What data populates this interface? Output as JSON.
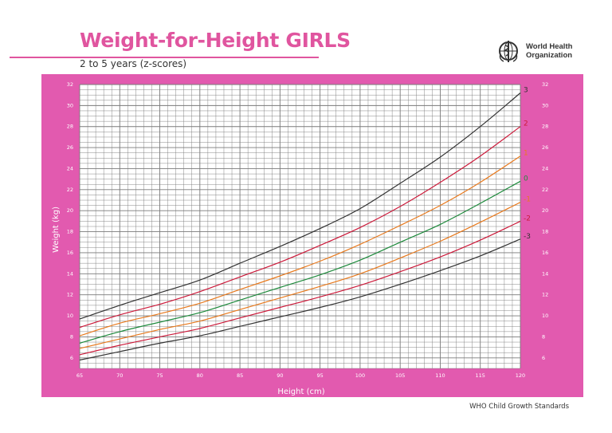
{
  "header": {
    "title": "Weight-for-Height GIRLS",
    "subtitle": "2 to 5 years (z-scores)",
    "org_line1": "World Health",
    "org_line2": "Organization"
  },
  "footer": {
    "text": "WHO Child Growth Standards"
  },
  "colors": {
    "frame": "#e25aaf",
    "grid": "#7a7a7a",
    "z3": "#333333",
    "z2": "#cc1a3a",
    "z1": "#e87a1e",
    "z0": "#1e8a3c"
  },
  "chart_data": {
    "type": "line",
    "title": "Weight-for-Height GIRLS",
    "subtitle": "2 to 5 years (z-scores)",
    "xlabel": "Height (cm)",
    "ylabel": "Weight (kg)",
    "xlim": [
      65,
      120
    ],
    "ylim": [
      5,
      32
    ],
    "x_ticks": [
      "65",
      "70",
      "75",
      "80",
      "85",
      "90",
      "95",
      "100",
      "105",
      "110",
      "115",
      "120"
    ],
    "y_ticks": [
      "6",
      "8",
      "10",
      "12",
      "14",
      "16",
      "18",
      "20",
      "22",
      "24",
      "26",
      "28",
      "30",
      "32"
    ],
    "grid": true,
    "x": [
      65,
      70,
      75,
      80,
      85,
      90,
      95,
      100,
      105,
      110,
      115,
      120
    ],
    "series": [
      {
        "name": "3",
        "color": "#333333",
        "values": [
          9.7,
          11.0,
          12.2,
          13.4,
          15.0,
          16.6,
          18.3,
          20.2,
          22.6,
          25.1,
          28.0,
          31.2
        ]
      },
      {
        "name": "2",
        "color": "#cc1a3a",
        "values": [
          8.9,
          10.1,
          11.1,
          12.3,
          13.7,
          15.1,
          16.7,
          18.4,
          20.4,
          22.7,
          25.2,
          28.0
        ]
      },
      {
        "name": "1",
        "color": "#e87a1e",
        "values": [
          8.1,
          9.3,
          10.2,
          11.2,
          12.5,
          13.8,
          15.2,
          16.8,
          18.6,
          20.5,
          22.7,
          25.2
        ]
      },
      {
        "name": "0",
        "color": "#1e8a3c",
        "values": [
          7.4,
          8.5,
          9.4,
          10.3,
          11.5,
          12.7,
          13.9,
          15.3,
          17.0,
          18.7,
          20.7,
          22.8
        ]
      },
      {
        "name": "-1",
        "color": "#e87a1e",
        "values": [
          6.9,
          7.8,
          8.7,
          9.5,
          10.6,
          11.7,
          12.8,
          14.0,
          15.5,
          17.1,
          18.9,
          20.8
        ]
      },
      {
        "name": "-2",
        "color": "#cc1a3a",
        "values": [
          6.3,
          7.2,
          8.0,
          8.8,
          9.8,
          10.8,
          11.8,
          12.9,
          14.2,
          15.6,
          17.2,
          19.0
        ]
      },
      {
        "name": "-3",
        "color": "#333333",
        "values": [
          5.8,
          6.6,
          7.4,
          8.1,
          9.0,
          9.9,
          10.8,
          11.8,
          13.0,
          14.3,
          15.7,
          17.3
        ]
      }
    ]
  }
}
